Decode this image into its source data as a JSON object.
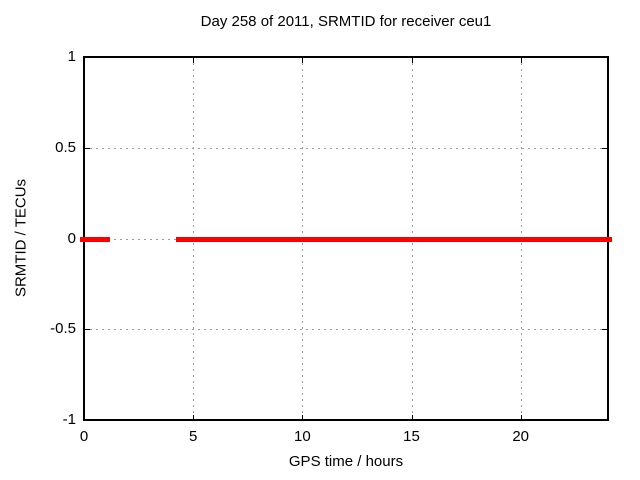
{
  "chart_data": {
    "type": "line",
    "title": "Day 258 of 2011, SRMTID for receiver ceu1",
    "xlabel": "GPS time / hours",
    "ylabel": "SRMTID / TECUs",
    "xlim": [
      0,
      24
    ],
    "ylim": [
      -1,
      1
    ],
    "grid": true,
    "legend": "none",
    "x_ticks": [
      {
        "value": 0,
        "label": "0"
      },
      {
        "value": 5,
        "label": "5"
      },
      {
        "value": 10,
        "label": "10"
      },
      {
        "value": 15,
        "label": "15"
      },
      {
        "value": 20,
        "label": "20"
      }
    ],
    "y_ticks": [
      {
        "value": 1,
        "label": "1"
      },
      {
        "value": 0.5,
        "label": "0.5"
      },
      {
        "value": 0,
        "label": "0"
      },
      {
        "value": -0.5,
        "label": "-0.5"
      },
      {
        "value": -1,
        "label": "-1"
      }
    ],
    "series": [
      {
        "name": "SRMTID",
        "color": "#ff0000",
        "style": "thick-line",
        "segments": [
          {
            "x_start": 0.0,
            "x_end": 1.0,
            "y": 0
          },
          {
            "x_start": 4.4,
            "x_end": 24.0,
            "y": 0
          }
        ]
      }
    ]
  },
  "colors": {
    "background": "#ffffff",
    "frame": "#000000",
    "grid": "#9c9c9c",
    "text": "#000000",
    "series": "#ff0000"
  }
}
